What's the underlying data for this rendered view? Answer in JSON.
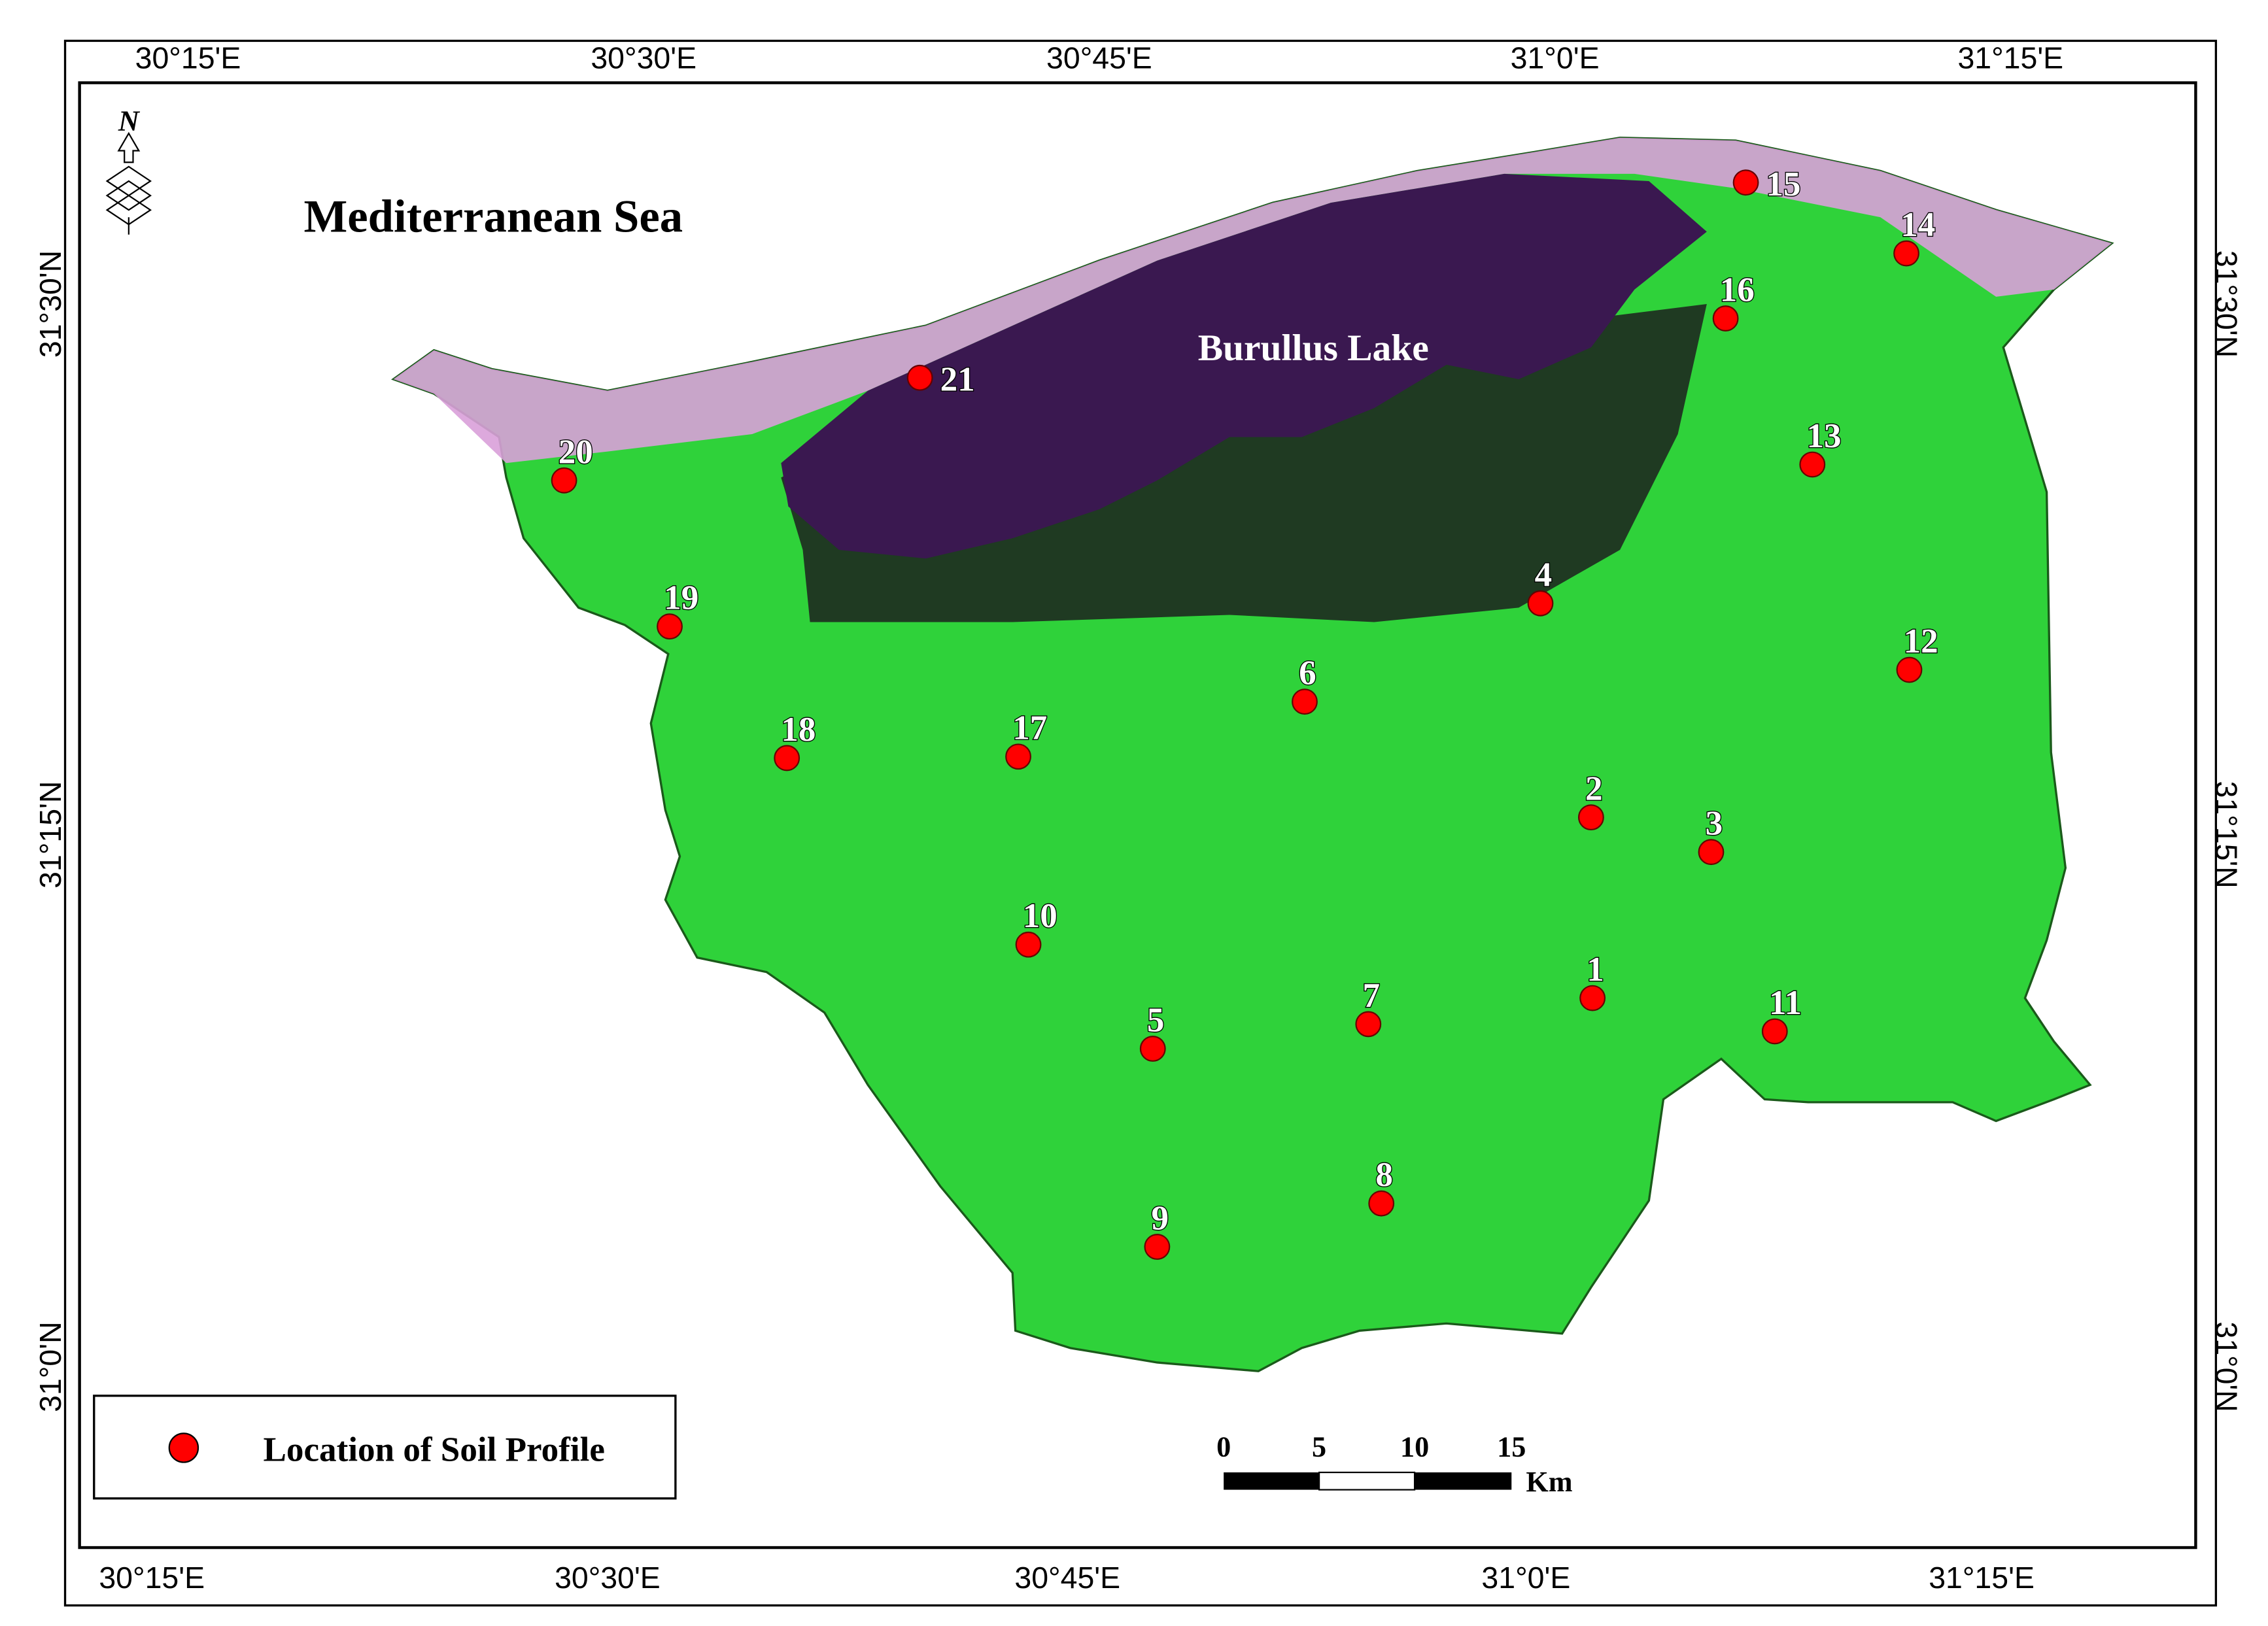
{
  "map": {
    "sea_label": "Mediterranean Sea",
    "lake_label": "Burullus Lake",
    "north_label": "N",
    "graticule": {
      "top": [
        "30°15'E",
        "30°30'E",
        "30°45'E",
        "31°0'E",
        "31°15'E"
      ],
      "bottom": [
        "30°15'E",
        "30°30'E",
        "30°45'E",
        "31°0'E",
        "31°15'E"
      ],
      "left": [
        "31°30'N",
        "31°15'N",
        "31°0'N"
      ],
      "right": [
        "31°30'N",
        "31°15'N",
        "31°0'N"
      ]
    },
    "legend": {
      "label": "Location of Soil Profile",
      "color": "#ff0000"
    },
    "scale_bar": {
      "ticks": [
        "0",
        "5",
        "10",
        "15"
      ],
      "unit": "Km"
    },
    "profiles": [
      {
        "label": "1"
      },
      {
        "label": "2"
      },
      {
        "label": "3"
      },
      {
        "label": "4"
      },
      {
        "label": "5"
      },
      {
        "label": "6"
      },
      {
        "label": "7"
      },
      {
        "label": "8"
      },
      {
        "label": "9"
      },
      {
        "label": "10"
      },
      {
        "label": "11"
      },
      {
        "label": "12"
      },
      {
        "label": "13"
      },
      {
        "label": "14"
      },
      {
        "label": "15"
      },
      {
        "label": "16"
      },
      {
        "label": "17"
      },
      {
        "label": "18"
      },
      {
        "label": "19"
      },
      {
        "label": "20"
      },
      {
        "label": "21"
      }
    ]
  }
}
